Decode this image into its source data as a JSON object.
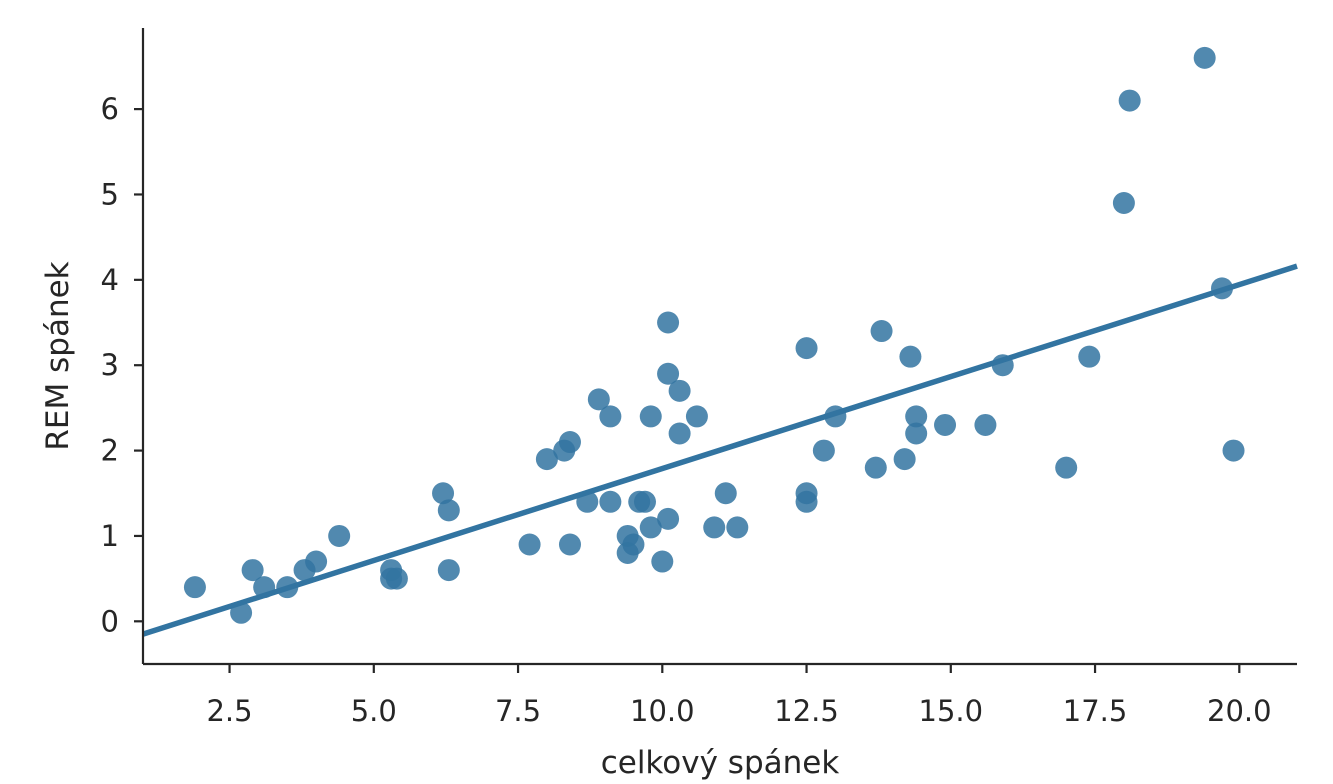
{
  "chart_data": {
    "type": "scatter",
    "title": "",
    "xlabel": "celkový spánek",
    "ylabel": "REM spánek",
    "xlim": [
      1.0,
      21.0
    ],
    "ylim": [
      -0.5,
      6.95
    ],
    "xticks": [
      2.5,
      5.0,
      7.5,
      10.0,
      12.5,
      15.0,
      17.5,
      20.0
    ],
    "xtick_labels": [
      "2.5",
      "5.0",
      "7.5",
      "10.0",
      "12.5",
      "15.0",
      "17.5",
      "20.0"
    ],
    "yticks": [
      0,
      1,
      2,
      3,
      4,
      5,
      6
    ],
    "ytick_labels": [
      "0",
      "1",
      "2",
      "3",
      "4",
      "5",
      "6"
    ],
    "grid": false,
    "color": "#3274a1",
    "points": [
      {
        "x": 1.9,
        "y": 0.4
      },
      {
        "x": 2.7,
        "y": 0.1
      },
      {
        "x": 2.9,
        "y": 0.6
      },
      {
        "x": 3.1,
        "y": 0.4
      },
      {
        "x": 3.5,
        "y": 0.4
      },
      {
        "x": 3.8,
        "y": 0.6
      },
      {
        "x": 4.0,
        "y": 0.7
      },
      {
        "x": 4.4,
        "y": 1.0
      },
      {
        "x": 5.3,
        "y": 0.6
      },
      {
        "x": 5.3,
        "y": 0.5
      },
      {
        "x": 5.4,
        "y": 0.5
      },
      {
        "x": 6.2,
        "y": 1.5
      },
      {
        "x": 6.3,
        "y": 1.3
      },
      {
        "x": 6.3,
        "y": 0.6
      },
      {
        "x": 7.7,
        "y": 0.9
      },
      {
        "x": 8.0,
        "y": 1.9
      },
      {
        "x": 8.3,
        "y": 2.0
      },
      {
        "x": 8.4,
        "y": 2.1
      },
      {
        "x": 8.4,
        "y": 0.9
      },
      {
        "x": 8.7,
        "y": 1.4
      },
      {
        "x": 8.9,
        "y": 2.6
      },
      {
        "x": 9.1,
        "y": 2.4
      },
      {
        "x": 9.1,
        "y": 1.4
      },
      {
        "x": 9.4,
        "y": 1.0
      },
      {
        "x": 9.4,
        "y": 0.8
      },
      {
        "x": 9.5,
        "y": 0.9
      },
      {
        "x": 9.6,
        "y": 1.4
      },
      {
        "x": 9.7,
        "y": 1.4
      },
      {
        "x": 9.8,
        "y": 2.4
      },
      {
        "x": 9.8,
        "y": 1.1
      },
      {
        "x": 10.0,
        "y": 0.7
      },
      {
        "x": 10.1,
        "y": 3.5
      },
      {
        "x": 10.1,
        "y": 2.9
      },
      {
        "x": 10.1,
        "y": 1.2
      },
      {
        "x": 10.3,
        "y": 2.7
      },
      {
        "x": 10.3,
        "y": 2.2
      },
      {
        "x": 10.6,
        "y": 2.4
      },
      {
        "x": 10.9,
        "y": 1.1
      },
      {
        "x": 11.1,
        "y": 1.5
      },
      {
        "x": 11.3,
        "y": 1.1
      },
      {
        "x": 12.5,
        "y": 3.2
      },
      {
        "x": 12.5,
        "y": 1.5
      },
      {
        "x": 12.5,
        "y": 1.4
      },
      {
        "x": 12.8,
        "y": 2.0
      },
      {
        "x": 13.0,
        "y": 2.4
      },
      {
        "x": 13.7,
        "y": 1.8
      },
      {
        "x": 13.8,
        "y": 3.4
      },
      {
        "x": 14.2,
        "y": 1.9
      },
      {
        "x": 14.3,
        "y": 3.1
      },
      {
        "x": 14.4,
        "y": 2.4
      },
      {
        "x": 14.4,
        "y": 2.2
      },
      {
        "x": 14.9,
        "y": 2.3
      },
      {
        "x": 15.6,
        "y": 2.3
      },
      {
        "x": 15.9,
        "y": 3.0
      },
      {
        "x": 17.0,
        "y": 1.8
      },
      {
        "x": 17.4,
        "y": 3.1
      },
      {
        "x": 18.0,
        "y": 4.9
      },
      {
        "x": 18.1,
        "y": 6.1
      },
      {
        "x": 19.4,
        "y": 6.6
      },
      {
        "x": 19.7,
        "y": 3.9
      },
      {
        "x": 19.9,
        "y": 2.0
      }
    ],
    "regression_line": {
      "x": [
        1.0,
        21.0
      ],
      "y": [
        -0.15,
        4.16
      ]
    }
  }
}
